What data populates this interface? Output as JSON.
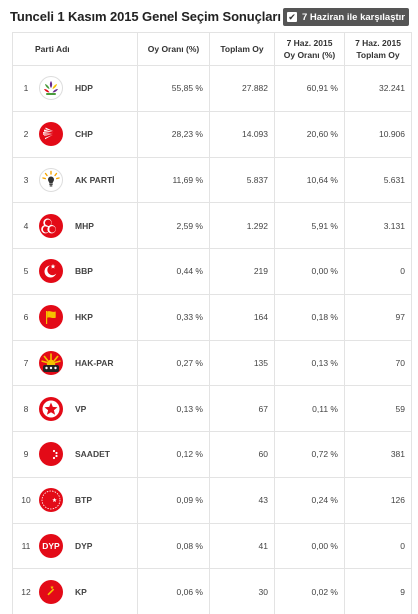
{
  "title": "Tunceli 1 Kasım 2015 Genel Seçim Sonuçları",
  "compare": {
    "label": "7 Haziran ile karşılaştır",
    "checked": true
  },
  "columns": {
    "party": "Parti Adı",
    "vote_rate": "Oy Oranı (%)",
    "total_votes": "Toplam Oy",
    "june_rate_line1": "7 Haz. 2015",
    "june_rate_line2": "Oy Oranı (%)",
    "june_total_line1": "7 Haz. 2015",
    "june_total_line2": "Toplam Oy"
  },
  "rows": [
    {
      "rank": "1",
      "party": "HDP",
      "icon": "hdp-logo-icon",
      "vote_rate": "55,85 %",
      "total_votes": "27.882",
      "june_rate": "60,91 %",
      "june_total": "32.241"
    },
    {
      "rank": "2",
      "party": "CHP",
      "icon": "chp-logo-icon",
      "vote_rate": "28,23 %",
      "total_votes": "14.093",
      "june_rate": "20,60 %",
      "june_total": "10.906"
    },
    {
      "rank": "3",
      "party": "AK PARTİ",
      "icon": "akparti-logo-icon",
      "vote_rate": "11,69 %",
      "total_votes": "5.837",
      "june_rate": "10,64 %",
      "june_total": "5.631"
    },
    {
      "rank": "4",
      "party": "MHP",
      "icon": "mhp-logo-icon",
      "vote_rate": "2,59 %",
      "total_votes": "1.292",
      "june_rate": "5,91 %",
      "june_total": "3.131"
    },
    {
      "rank": "5",
      "party": "BBP",
      "icon": "bbp-logo-icon",
      "vote_rate": "0,44 %",
      "total_votes": "219",
      "june_rate": "0,00 %",
      "june_total": "0"
    },
    {
      "rank": "6",
      "party": "HKP",
      "icon": "hkp-logo-icon",
      "vote_rate": "0,33 %",
      "total_votes": "164",
      "june_rate": "0,18 %",
      "june_total": "97"
    },
    {
      "rank": "7",
      "party": "HAK-PAR",
      "icon": "hakpar-logo-icon",
      "vote_rate": "0,27 %",
      "total_votes": "135",
      "june_rate": "0,13 %",
      "june_total": "70"
    },
    {
      "rank": "8",
      "party": "VP",
      "icon": "vp-logo-icon",
      "vote_rate": "0,13 %",
      "total_votes": "67",
      "june_rate": "0,11 %",
      "june_total": "59"
    },
    {
      "rank": "9",
      "party": "SAADET",
      "icon": "saadet-logo-icon",
      "vote_rate": "0,12 %",
      "total_votes": "60",
      "june_rate": "0,72 %",
      "june_total": "381"
    },
    {
      "rank": "10",
      "party": "BTP",
      "icon": "btp-logo-icon",
      "vote_rate": "0,09 %",
      "total_votes": "43",
      "june_rate": "0,24 %",
      "june_total": "126"
    },
    {
      "rank": "11",
      "party": "DYP",
      "icon": "dyp-logo-icon",
      "vote_rate": "0,08 %",
      "total_votes": "41",
      "june_rate": "0,00 %",
      "june_total": "0"
    },
    {
      "rank": "12",
      "party": "KP",
      "icon": "kp-logo-icon",
      "vote_rate": "0,06 %",
      "total_votes": "30",
      "june_rate": "0,02 %",
      "june_total": "9"
    }
  ],
  "colors": {
    "header_button_bg": "#555555",
    "border": "#e3e3e3",
    "party_red": "#e30a17",
    "hdp_purple": "#6a2c8e",
    "hdp_green": "#4a9b3b"
  }
}
